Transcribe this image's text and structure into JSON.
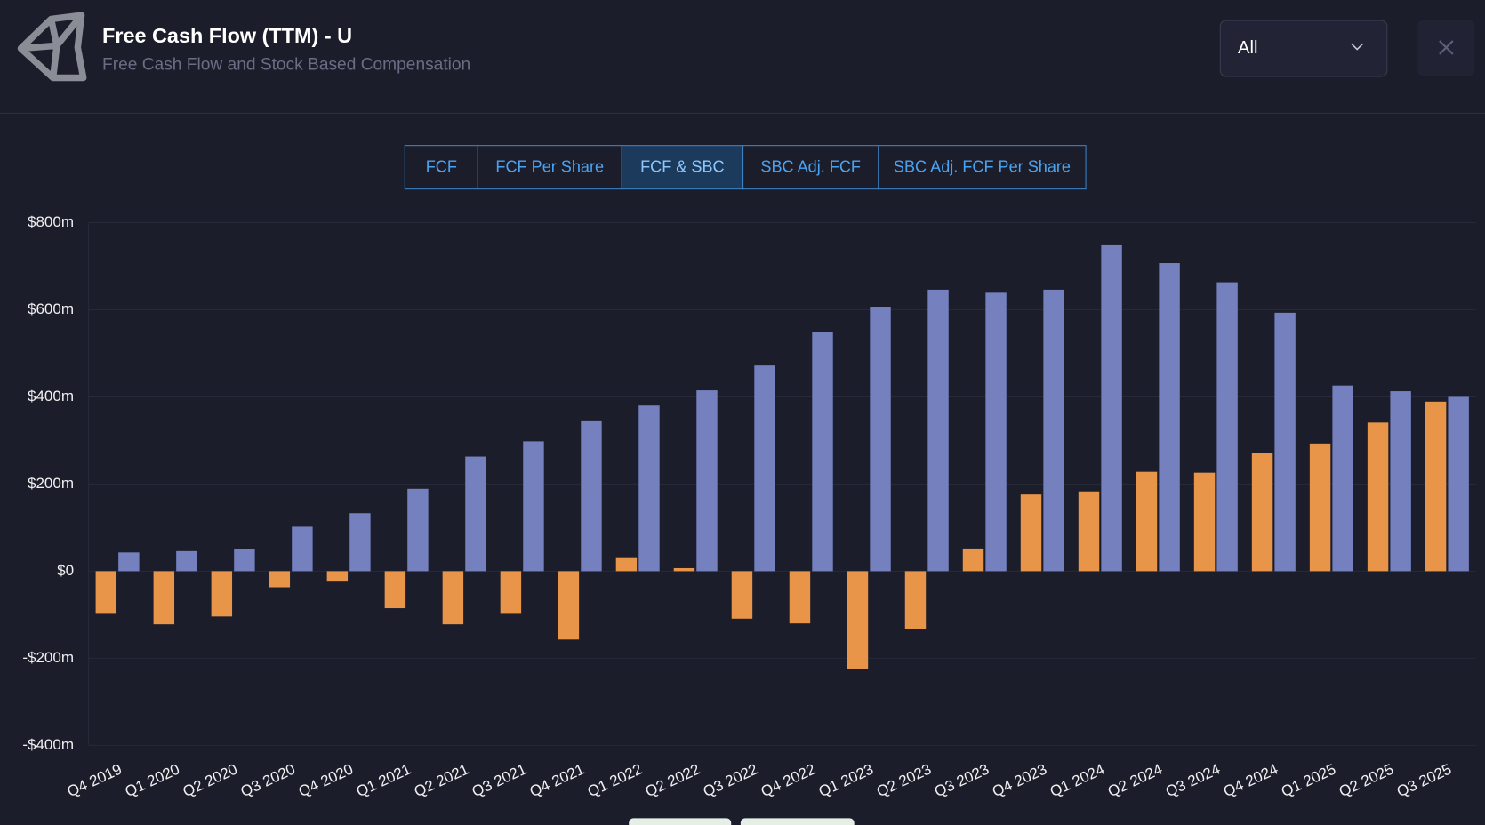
{
  "header": {
    "title": "Free Cash Flow (TTM) - U",
    "subtitle": "Free Cash Flow and Stock Based Compensation"
  },
  "dropdown": {
    "value": "All"
  },
  "tabs": [
    "FCF",
    "FCF Per Share",
    "FCF & SBC",
    "SBC Adj. FCF",
    "SBC Adj. FCF Per Share"
  ],
  "chart_data": {
    "type": "bar",
    "categories": [
      "Q4 2019",
      "Q1 2020",
      "Q2 2020",
      "Q3 2020",
      "Q4 2020",
      "Q1 2021",
      "Q2 2021",
      "Q3 2021",
      "Q4 2021",
      "Q1 2022",
      "Q2 2022",
      "Q3 2022",
      "Q4 2022",
      "Q1 2023",
      "Q2 2023",
      "Q3 2023",
      "Q4 2023",
      "Q1 2024",
      "Q2 2024",
      "Q3 2024",
      "Q4 2024",
      "Q1 2025",
      "Q2 2025",
      "Q3 2025"
    ],
    "series": [
      {
        "color": "#e8954a",
        "values": [
          -98,
          -122,
          -104,
          -37,
          -24,
          -85,
          -122,
          -98,
          -157,
          30,
          7,
          -109,
          -120,
          -224,
          -133,
          52,
          176,
          183,
          228,
          226,
          272,
          293,
          341,
          389
        ]
      },
      {
        "color": "#7580bf",
        "values": [
          43,
          46,
          50,
          102,
          133,
          189,
          263,
          298,
          346,
          380,
          415,
          472,
          548,
          607,
          646,
          639,
          646,
          748,
          707,
          663,
          593,
          426,
          413,
          400
        ]
      }
    ],
    "ylim": [
      -400,
      800
    ],
    "yticks": [
      {
        "value": -400,
        "label": "-$400m"
      },
      {
        "value": -200,
        "label": "-$200m"
      },
      {
        "value": 0,
        "label": "$0"
      },
      {
        "value": 200,
        "label": "$200m"
      },
      {
        "value": 400,
        "label": "$400m"
      },
      {
        "value": 600,
        "label": "$600m"
      },
      {
        "value": 800,
        "label": "$800m"
      }
    ],
    "grid": true
  }
}
